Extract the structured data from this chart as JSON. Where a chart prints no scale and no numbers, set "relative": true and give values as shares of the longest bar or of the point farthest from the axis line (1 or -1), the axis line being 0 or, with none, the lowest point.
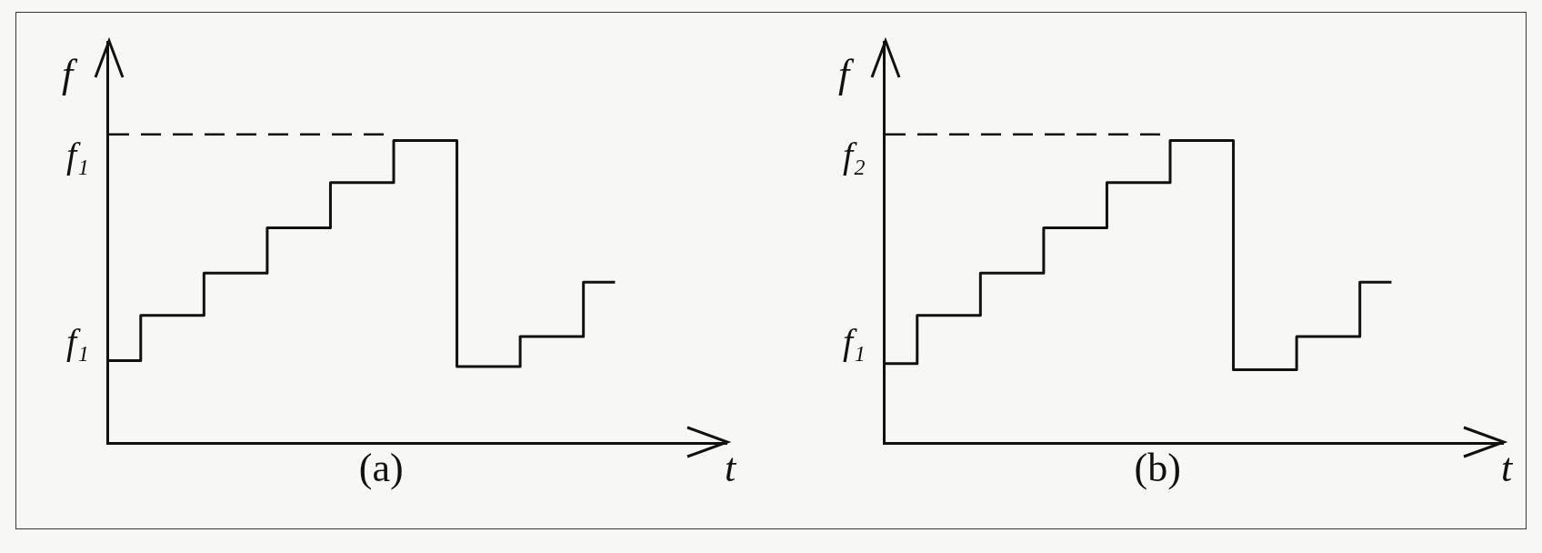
{
  "chart_data": [
    {
      "type": "step",
      "title": "(a)",
      "xlabel": "t",
      "ylabel": "f",
      "relative": true,
      "categories": [
        null,
        null,
        null,
        null,
        null,
        null,
        null,
        null,
        null
      ],
      "series": [
        {
          "color": "#111111",
          "values": [
            0.27,
            0.42,
            0.56,
            0.71,
            0.86,
            1,
            0.25,
            0.35,
            0.53
          ]
        }
      ],
      "annotations": [
        "f₁",
        "f₁"
      ],
      "ref_lines": [
        {
          "axis": "y",
          "value": 1.02,
          "line_style": "dashed"
        }
      ]
    },
    {
      "type": "step",
      "title": "(b)",
      "xlabel": "t",
      "ylabel": "f",
      "relative": true,
      "categories": [
        null,
        null,
        null,
        null,
        null,
        null,
        null,
        null,
        null
      ],
      "series": [
        {
          "color": "#111111",
          "values": [
            0.26,
            0.42,
            0.56,
            0.71,
            0.86,
            1,
            0.24,
            0.35,
            0.53
          ]
        }
      ],
      "annotations": [
        "f₁",
        "f₂"
      ],
      "ref_lines": [
        {
          "axis": "y",
          "value": 1.02,
          "line_style": "dashed"
        }
      ]
    }
  ]
}
